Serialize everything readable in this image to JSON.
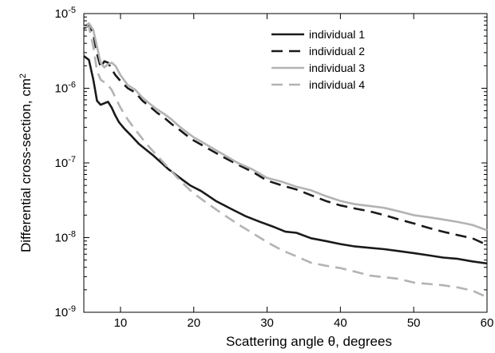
{
  "chart_data": {
    "type": "line",
    "xlabel": "Scattering angle θ, degrees",
    "ylabel": "Differential cross-section, cm²",
    "xlim": [
      5,
      60
    ],
    "ylim": [
      1e-09,
      1e-05
    ],
    "yscale": "log",
    "x_ticks": [
      10,
      20,
      30,
      40,
      50,
      60
    ],
    "y_ticks": [
      {
        "value": 1e-09,
        "base": "10",
        "exp": "-9"
      },
      {
        "value": 1e-08,
        "base": "10",
        "exp": "-8"
      },
      {
        "value": 1e-07,
        "base": "10",
        "exp": "-7"
      },
      {
        "value": 1e-06,
        "base": "10",
        "exp": "-6"
      },
      {
        "value": 1e-05,
        "base": "10",
        "exp": "-5"
      }
    ],
    "grid": false,
    "legend_position": "top-right",
    "series": [
      {
        "name": "individual 1",
        "color": "#1a1a1a",
        "dash": "solid",
        "x": [
          5,
          5.7,
          6.3,
          6.8,
          7.3,
          7.8,
          8.3,
          8.8,
          9.3,
          9.8,
          10.5,
          11.5,
          12.5,
          13.5,
          14.5,
          15.5,
          16.5,
          17.5,
          18.5,
          19.5,
          21,
          23,
          25,
          27,
          29,
          31,
          32.5,
          34,
          36,
          38,
          40,
          42,
          44,
          46,
          48,
          50,
          52,
          54,
          56,
          58,
          60
        ],
        "y": [
          2.7e-06,
          2.4e-06,
          1.3e-06,
          6.8e-07,
          6e-07,
          6.3e-07,
          6.6e-07,
          5.5e-07,
          4.3e-07,
          3.5e-07,
          2.9e-07,
          2.3e-07,
          1.8e-07,
          1.5e-07,
          1.25e-07,
          1.02e-07,
          8.3e-08,
          7e-08,
          5.9e-08,
          5e-08,
          4.2e-08,
          3.1e-08,
          2.45e-08,
          1.95e-08,
          1.63e-08,
          1.38e-08,
          1.2e-08,
          1.16e-08,
          9.8e-09,
          9e-09,
          8.2e-09,
          7.6e-09,
          7.3e-09,
          7e-09,
          6.6e-09,
          6.2e-09,
          5.8e-09,
          5.4e-09,
          5.2e-09,
          4.8e-09,
          4.5e-09
        ]
      },
      {
        "name": "individual 2",
        "color": "#1a1a1a",
        "dash": "dashed",
        "x": [
          5,
          5.7,
          6.3,
          6.8,
          7.3,
          7.8,
          8.3,
          8.8,
          9.3,
          10,
          11,
          12,
          13,
          14,
          15,
          16,
          17,
          18,
          19,
          20,
          22,
          24,
          26,
          28,
          30,
          32,
          34,
          36,
          38,
          40,
          42,
          44,
          46,
          48,
          50,
          52,
          54,
          56,
          58,
          60
        ],
        "y": [
          6.4e-06,
          6.8e-06,
          5.3e-06,
          2.9e-06,
          1.9e-06,
          2.3e-06,
          2.2e-06,
          1.8e-06,
          1.5e-06,
          1.25e-06,
          1e-06,
          8.8e-07,
          6.8e-07,
          5.7e-07,
          4.7e-07,
          4e-07,
          3.3e-07,
          2.8e-07,
          2.35e-07,
          2e-07,
          1.55e-07,
          1.2e-07,
          9.5e-08,
          7.6e-08,
          5.8e-08,
          5e-08,
          4.4e-08,
          3.7e-08,
          3.1e-08,
          2.7e-08,
          2.45e-08,
          2.25e-08,
          2e-08,
          1.75e-08,
          1.55e-08,
          1.35e-08,
          1.2e-08,
          1.08e-08,
          9.8e-09,
          8e-09
        ]
      },
      {
        "name": "individual 3",
        "color": "#b3b3b3",
        "dash": "solid",
        "x": [
          5,
          5.7,
          6.3,
          6.8,
          7.3,
          7.8,
          8.3,
          8.8,
          9.3,
          10,
          11,
          12,
          13,
          14,
          15,
          16,
          17,
          18,
          19,
          20,
          22,
          24,
          26,
          28,
          30,
          32,
          34,
          36,
          38,
          40,
          42,
          44,
          46,
          48,
          50,
          52,
          54,
          56,
          58,
          60
        ],
        "y": [
          6.7e-06,
          7.4e-06,
          6e-06,
          3.6e-06,
          2.2e-06,
          1.9e-06,
          2.1e-06,
          2.2e-06,
          2e-06,
          1.5e-06,
          1.1e-06,
          9.6e-07,
          7.5e-07,
          6.2e-07,
          5.2e-07,
          4.5e-07,
          3.8e-07,
          3.1e-07,
          2.6e-07,
          2.2e-07,
          1.7e-07,
          1.3e-07,
          1e-07,
          8.2e-08,
          6.3e-08,
          5.6e-08,
          4.8e-08,
          4.3e-08,
          3.6e-08,
          3.1e-08,
          2.8e-08,
          2.65e-08,
          2.5e-08,
          2.25e-08,
          2e-08,
          1.88e-08,
          1.75e-08,
          1.62e-08,
          1.48e-08,
          1.25e-08
        ]
      },
      {
        "name": "individual 4",
        "color": "#b3b3b3",
        "dash": "dashed",
        "x": [
          5,
          5.7,
          6.3,
          6.8,
          7.3,
          7.8,
          8.3,
          8.8,
          9.3,
          10,
          11,
          12,
          13,
          14,
          15,
          16,
          17,
          18,
          19,
          20,
          22,
          24,
          26,
          28,
          30,
          32,
          34,
          36,
          38,
          40,
          42,
          44,
          46,
          48,
          50,
          52,
          54,
          56,
          58,
          60
        ],
        "y": [
          6.8e-06,
          6.6e-06,
          3.6e-06,
          1.7e-06,
          1.3e-06,
          1.2e-06,
          1.1e-06,
          9.5e-07,
          7.5e-07,
          5.5e-07,
          3.8e-07,
          2.8e-07,
          2.1e-07,
          1.6e-07,
          1.25e-07,
          9.8e-08,
          7.6e-08,
          6e-08,
          4.8e-08,
          3.9e-08,
          2.8e-08,
          2.05e-08,
          1.52e-08,
          1.15e-08,
          8.7e-09,
          6.8e-09,
          5.6e-09,
          4.6e-09,
          4.2e-09,
          3.9e-09,
          3.5e-09,
          3.1e-09,
          2.95e-09,
          2.8e-09,
          2.5e-09,
          2.4e-09,
          2.3e-09,
          2.15e-09,
          1.95e-09,
          1.6e-09
        ]
      }
    ]
  }
}
